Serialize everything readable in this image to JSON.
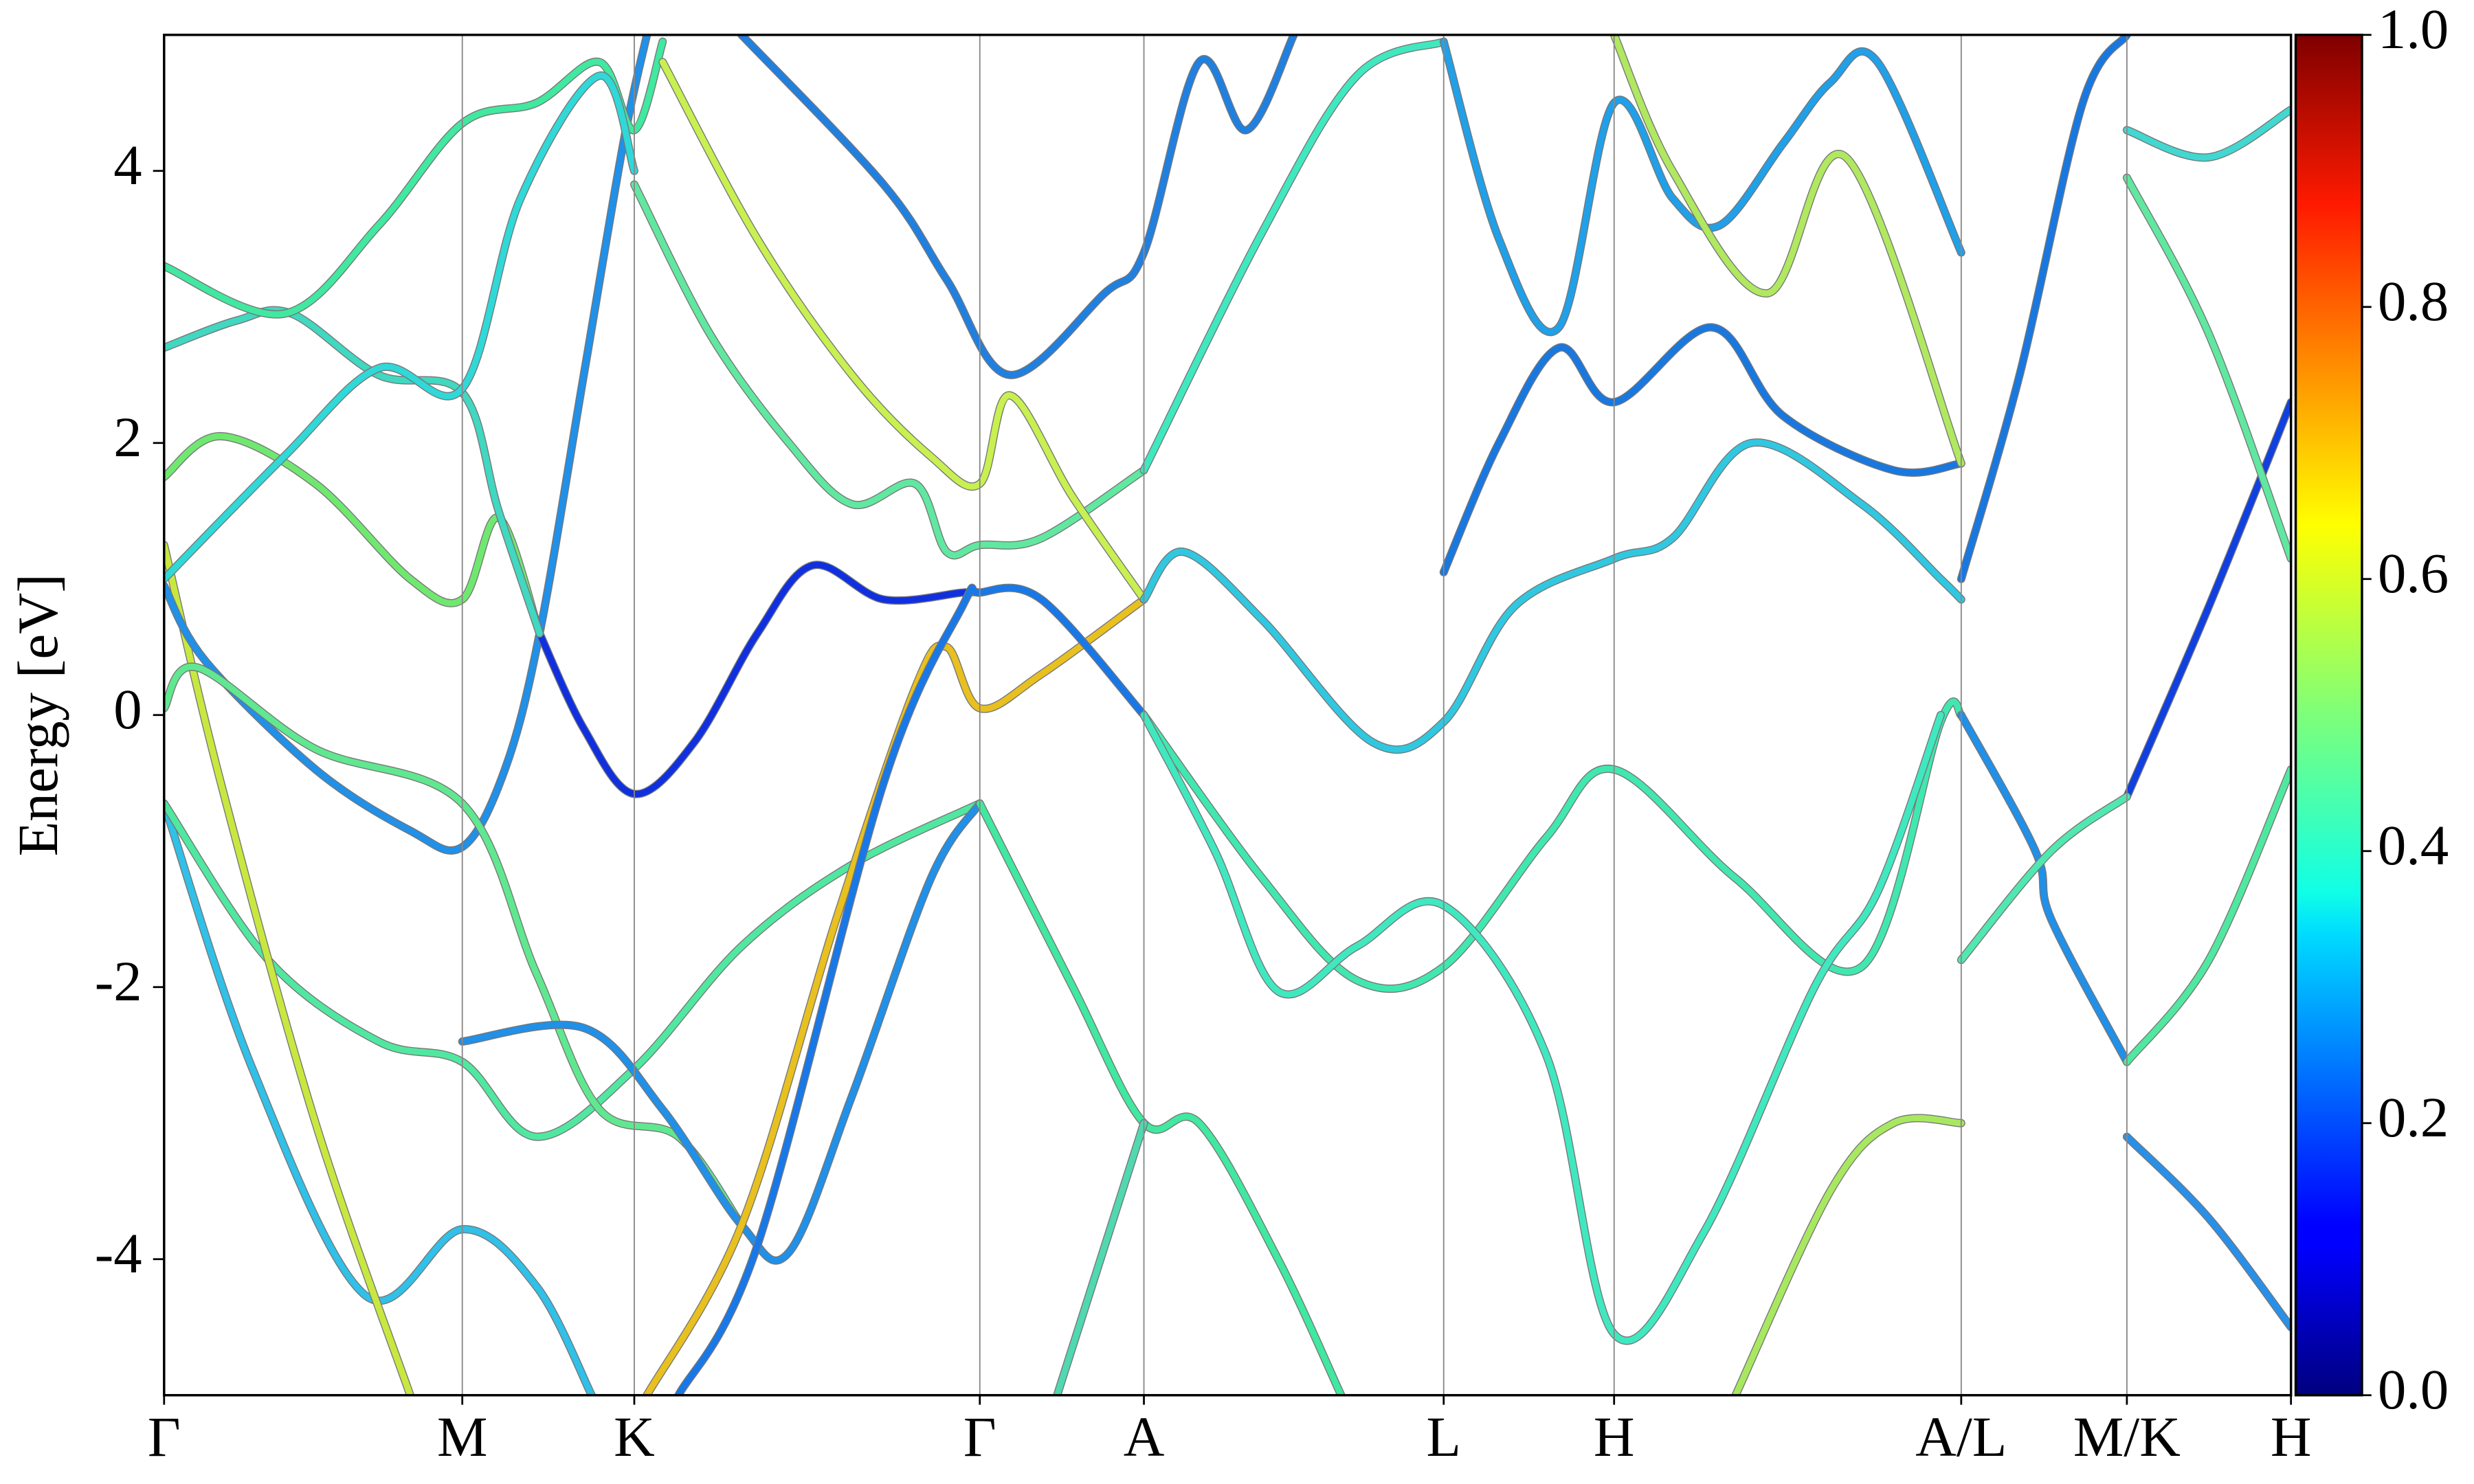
{
  "chart_data": {
    "type": "band",
    "y_label": "Energy [eV]",
    "xlim": [
      0,
      1348
    ],
    "ylim": [
      -5,
      5
    ],
    "xticks": [
      {
        "value": 0,
        "label": "Γ"
      },
      {
        "value": 189,
        "label": "M"
      },
      {
        "value": 298,
        "label": "K"
      },
      {
        "value": 517,
        "label": "Γ"
      },
      {
        "value": 621,
        "label": "A"
      },
      {
        "value": 811,
        "label": "L"
      },
      {
        "value": 919,
        "label": "H"
      },
      {
        "value": 1139,
        "label": "A/L"
      },
      {
        "value": 1244,
        "label": "M/K"
      },
      {
        "value": 1348,
        "label": "H"
      }
    ],
    "yticks": [
      -4,
      -2,
      0,
      2,
      4
    ],
    "vlines": true,
    "colorbar": {
      "colormap": "jet",
      "lim": [
        0,
        1
      ],
      "ticks": [
        {
          "value": 0,
          "label": "0.0"
        },
        {
          "value": 0.2,
          "label": "0.2"
        },
        {
          "value": 0.4,
          "label": "0.4"
        },
        {
          "value": 0.6,
          "label": "0.6"
        },
        {
          "value": 0.8,
          "label": "0.8"
        },
        {
          "value": 1,
          "label": "1.0"
        }
      ]
    },
    "series": [
      {
        "color": "#30c0e8",
        "x": [
          0,
          56,
          128,
          189,
          236,
          271
        ],
        "values": [
          -0.65,
          -2.6,
          -4.27,
          -3.78,
          -4.2,
          -5
        ]
      },
      {
        "color": "#50e8a0",
        "x": [
          0,
          66,
          136,
          189,
          236,
          298,
          366,
          436,
          517
        ],
        "values": [
          -0.65,
          -1.8,
          -2.4,
          -2.55,
          -3.1,
          -2.6,
          -1.7,
          -1.1,
          -0.65
        ]
      },
      {
        "color": "#c8e840",
        "x": [
          0,
          36,
          96,
          156
        ],
        "values": [
          1.25,
          -0.5,
          -3.0,
          -5
        ]
      },
      {
        "color": "#2090e8",
        "x": [
          0,
          26,
          96,
          156,
          189,
          216,
          238,
          266,
          291,
          306
        ],
        "values": [
          0.95,
          0.4,
          -0.4,
          -0.85,
          -0.97,
          -0.4,
          0.6,
          2.5,
          4.2,
          5
        ]
      },
      {
        "color": "#1030e0",
        "x": [
          238,
          266,
          298,
          336,
          376,
          411,
          456,
          506,
          517
        ],
        "values": [
          0.6,
          -0.1,
          -0.58,
          -0.2,
          0.6,
          1.1,
          0.85,
          0.9,
          0.9
        ]
      },
      {
        "color": "#60e890",
        "x": [
          0,
          21,
          96,
          189,
          236,
          276,
          326,
          366
        ],
        "values": [
          0.05,
          0.35,
          -0.25,
          -0.65,
          -1.9,
          -2.9,
          -3.1,
          -3.75
        ]
      },
      {
        "color": "#2090e8",
        "x": [
          189,
          266,
          316,
          366,
          396,
          436,
          486,
          517
        ],
        "values": [
          -2.4,
          -2.3,
          -2.9,
          -3.75,
          -3.95,
          -2.8,
          -1.2,
          -0.65
        ]
      },
      {
        "color": "#e8c020",
        "x": [
          306,
          366,
          426,
          476,
          496,
          517,
          556,
          621
        ],
        "values": [
          -5,
          -3.75,
          -1.5,
          0.2,
          0.5,
          0.05,
          0.3,
          0.85
        ]
      },
      {
        "color": "#1878e8",
        "x": [
          326,
          376,
          456,
          506,
          517,
          556,
          621
        ],
        "values": [
          -5,
          -3.9,
          -0.5,
          0.8,
          0.9,
          0.85,
          0
        ]
      },
      {
        "color": "#70e870",
        "x": [
          0,
          36,
          96,
          156,
          189,
          212,
          238
        ],
        "values": [
          1.75,
          2.05,
          1.7,
          1.0,
          0.85,
          1.45,
          0.6
        ]
      },
      {
        "color": "#40d8c0",
        "x": [
          0,
          46,
          81,
          136,
          189,
          212,
          238
        ],
        "values": [
          2.7,
          2.9,
          2.95,
          2.5,
          2.37,
          1.5,
          0.6
        ]
      },
      {
        "color": "#40e8a0",
        "x": [
          0,
          76,
          136,
          189,
          236,
          276,
          298,
          316
        ],
        "values": [
          3.3,
          2.95,
          3.6,
          4.35,
          4.5,
          4.8,
          4.3,
          4.95
        ]
      },
      {
        "color": "#30d8d8",
        "x": [
          0,
          76,
          136,
          189,
          226,
          276,
          298
        ],
        "values": [
          1.0,
          1.9,
          2.55,
          2.4,
          3.8,
          4.7,
          4.0
        ]
      },
      {
        "color": "#60e8a0",
        "x": [
          298,
          346,
          396,
          436,
          476,
          496,
          517,
          556,
          621
        ],
        "values": [
          3.9,
          2.8,
          2.0,
          1.55,
          1.7,
          1.2,
          1.25,
          1.3,
          1.8
        ]
      },
      {
        "color": "#c8f050",
        "x": [
          316,
          376,
          436,
          486,
          517,
          536,
          576,
          621
        ],
        "values": [
          4.8,
          3.5,
          2.5,
          1.9,
          1.7,
          2.35,
          1.6,
          0.85
        ]
      },
      {
        "color": "#2080e0",
        "x": [
          366,
          456,
          496,
          536,
          596,
          621,
          656,
          686,
          716
        ],
        "values": [
          5,
          3.9,
          3.2,
          2.5,
          3.1,
          3.4,
          4.8,
          4.3,
          5
        ]
      },
      {
        "color": "#40e8b0",
        "x": [
          621,
          696,
          756,
          811,
          876,
          919,
          996,
          1076,
          1126,
          1139
        ],
        "values": [
          0,
          -1.2,
          -1.95,
          -1.85,
          -0.9,
          -0.4,
          -1.2,
          -1.85,
          -0.05,
          0
        ]
      },
      {
        "color": "#40e8c0",
        "x": [
          621,
          666,
          706,
          756,
          811,
          876,
          919,
          976,
          1046,
          1086,
          1126
        ],
        "values": [
          0,
          -1.0,
          -2.03,
          -1.7,
          -1.4,
          -2.5,
          -4.55,
          -3.8,
          -2.0,
          -1.3,
          0
        ]
      },
      {
        "color": "#30c8e0",
        "x": [
          621,
          646,
          696,
          766,
          811,
          856,
          919,
          956,
          1006,
          1076,
          1126,
          1139
        ],
        "values": [
          0.85,
          1.2,
          0.7,
          -0.2,
          -0.05,
          0.8,
          1.15,
          1.3,
          2.0,
          1.55,
          1.0,
          0.85
        ]
      },
      {
        "color": "#40e8c0",
        "x": [
          621,
          696,
          756,
          811
        ],
        "values": [
          1.8,
          3.55,
          4.7,
          4.95
        ]
      },
      {
        "color": "#20a0e8",
        "x": [
          811,
          846,
          884,
          919,
          956,
          986,
          1026,
          1056,
          1086,
          1139
        ],
        "values": [
          4.95,
          3.5,
          2.85,
          4.5,
          3.8,
          3.6,
          4.2,
          4.65,
          4.8,
          3.4
        ]
      },
      {
        "color": "#1878e0",
        "x": [
          811,
          846,
          884,
          919,
          981,
          1026,
          1096,
          1139
        ],
        "values": [
          1.05,
          2.0,
          2.7,
          2.3,
          2.85,
          2.2,
          1.8,
          1.85
        ]
      },
      {
        "color": "#b0e860",
        "x": [
          919,
          956,
          1016,
          1066,
          1139
        ],
        "values": [
          5,
          4.0,
          3.1,
          4.1,
          1.85
        ]
      },
      {
        "color": "#40e8a0",
        "x": [
          517,
          576,
          621,
          656,
          706,
          746
        ],
        "values": [
          -0.65,
          -2.0,
          -3.0,
          -3.0,
          -4.0,
          -5
        ]
      },
      {
        "color": "#50d8b0",
        "x": [
          566,
          621
        ],
        "values": [
          -5,
          -3.0
        ]
      },
      {
        "color": "#a8e860",
        "x": [
          996,
          1056,
          1096,
          1139
        ],
        "values": [
          -5,
          -3.5,
          -3.0,
          -3.0
        ]
      },
      {
        "color": "#2090e8",
        "x": [
          1139,
          1186,
          1196,
          1244
        ],
        "values": [
          0,
          -1.0,
          -1.5,
          -2.55
        ]
      },
      {
        "color": "#1878e0",
        "x": [
          1139,
          1176,
          1216,
          1244
        ],
        "values": [
          1.0,
          2.5,
          4.5,
          5
        ]
      },
      {
        "color": "#1040e0",
        "x": [
          1244,
          1296,
          1348
        ],
        "values": [
          -0.6,
          0.8,
          2.3
        ]
      },
      {
        "color": "#2890e8",
        "x": [
          1244,
          1296,
          1348
        ],
        "values": [
          -3.1,
          -3.7,
          -4.5
        ]
      },
      {
        "color": "#60e8a0",
        "x": [
          1244,
          1296,
          1348
        ],
        "values": [
          3.95,
          2.8,
          1.15
        ]
      },
      {
        "color": "#50e8b0",
        "x": [
          1139,
          1196,
          1244
        ],
        "values": [
          -1.8,
          -1.0,
          -0.6
        ]
      },
      {
        "color": "#40d8d0",
        "x": [
          1244,
          1296,
          1348
        ],
        "values": [
          4.3,
          4.1,
          4.45
        ]
      },
      {
        "color": "#50e8a0",
        "x": [
          1244,
          1296,
          1348
        ],
        "values": [
          -2.55,
          -1.8,
          -0.4
        ]
      }
    ]
  }
}
